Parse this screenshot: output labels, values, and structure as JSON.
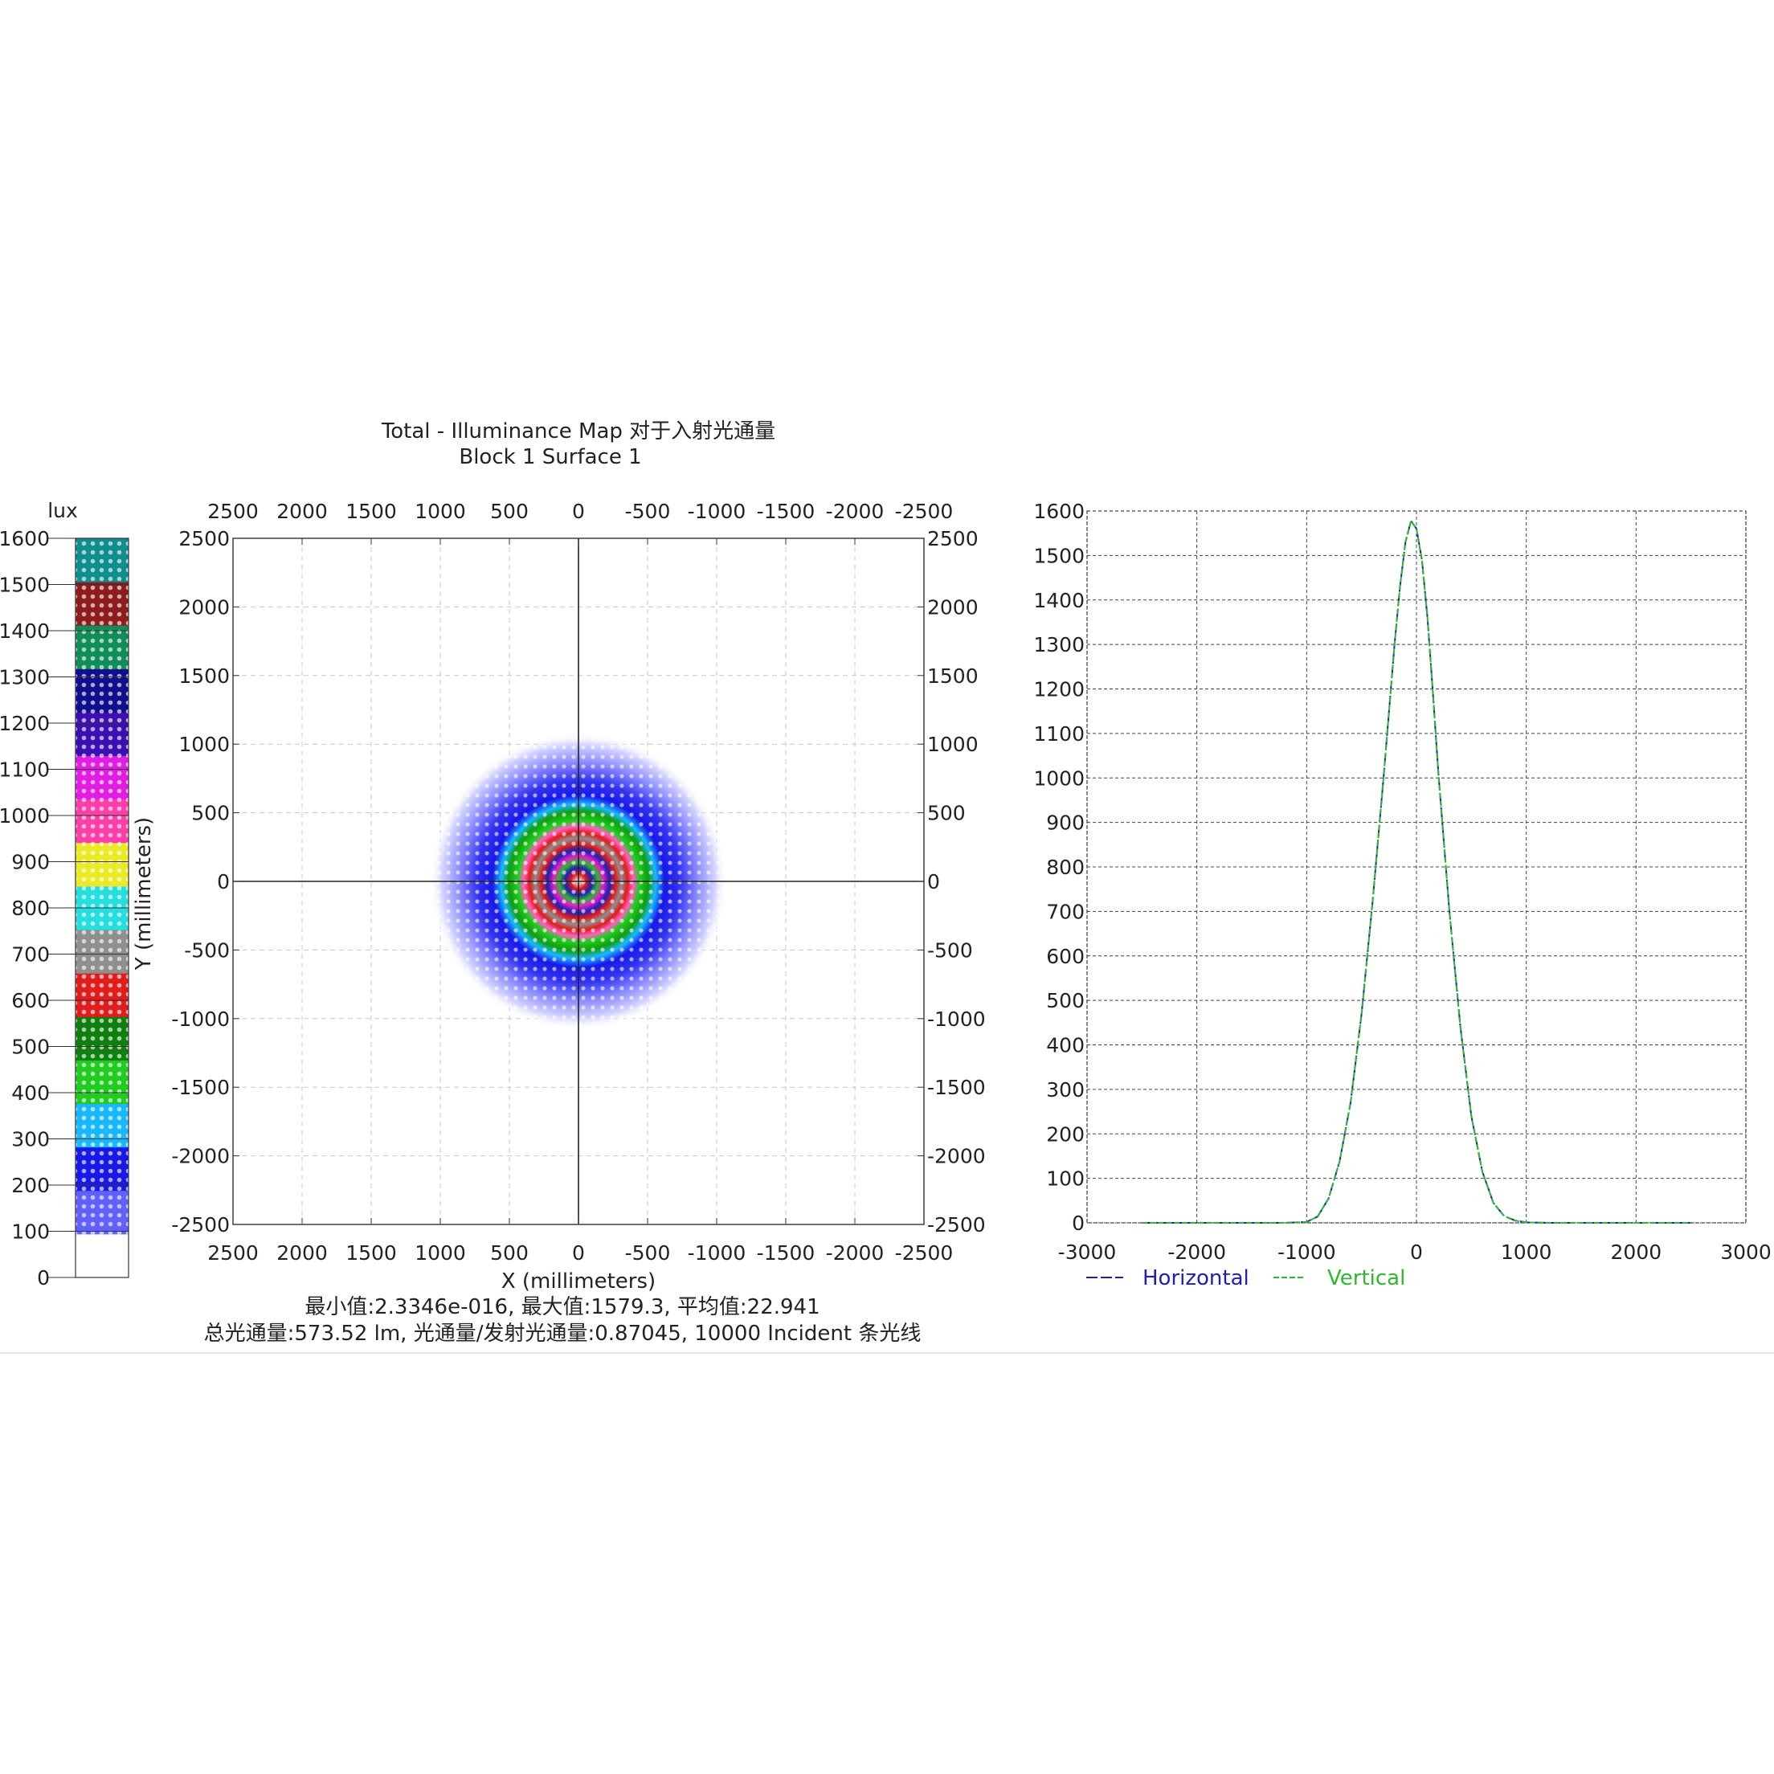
{
  "map_title": {
    "line1": "Total - Illuminance Map 对于入射光通量",
    "line2": "Block 1 Surface 1"
  },
  "colorbar": {
    "unit": "lux",
    "ticks": [
      "1600",
      "1500",
      "1400",
      "1300",
      "1200",
      "1100",
      "1000",
      "900",
      "800",
      "700",
      "600",
      "500",
      "400",
      "300",
      "200",
      "100",
      "0"
    ],
    "colors": [
      "#ffffff",
      "#6060ff",
      "#1818e8",
      "#18b8ff",
      "#1fcc1f",
      "#0f7f0f",
      "#e21c1c",
      "#8f8f8f",
      "#27dede",
      "#eaea27",
      "#ff3ea8",
      "#e21ce2",
      "#3c0fb3",
      "#0f0f8e",
      "#0f8e5a",
      "#8e1c1c",
      "#0f8e8e"
    ],
    "color_names": [
      "white",
      "light-blue",
      "blue",
      "sky-blue",
      "green",
      "dark-green",
      "red",
      "gray",
      "cyan",
      "yellow",
      "pink",
      "magenta",
      "purple",
      "navy",
      "sea-green",
      "dark-red",
      "teal"
    ]
  },
  "map_axes": {
    "top_ticks": [
      "2500",
      "2000",
      "1500",
      "1000",
      "500",
      "0",
      "-500",
      "-1000",
      "-1500",
      "-2000",
      "-2500"
    ],
    "bottom_ticks": [
      "2500",
      "2000",
      "1500",
      "1000",
      "500",
      "0",
      "-500",
      "-1000",
      "-1500",
      "-2000",
      "-2500"
    ],
    "left_ticks": [
      "2500",
      "2000",
      "1500",
      "1000",
      "500",
      "0",
      "-500",
      "-1000",
      "-1500",
      "-2000",
      "-2500"
    ],
    "right_ticks": [
      "2500",
      "2000",
      "1500",
      "1000",
      "500",
      "0",
      "-500",
      "-1000",
      "-1500",
      "-2000",
      "-2500"
    ],
    "xlabel": "X (millimeters)",
    "ylabel": "Y (millimeters)"
  },
  "stats": {
    "line1": "最小值:2.3346e-016, 最大值:1579.3, 平均值:22.941",
    "line2": "总光通量:573.52 lm, 光通量/发射光通量:0.87045, 10000 Incident 条光线"
  },
  "chart_data": [
    {
      "type": "heatmap",
      "title": "Total - Illuminance Map 对于入射光通量",
      "subtitle": "Block 1 Surface 1",
      "xlabel": "X (millimeters)",
      "ylabel": "Y (millimeters)",
      "xlim": [
        2500,
        -2500
      ],
      "ylim": [
        -2500,
        2500
      ],
      "zlim": [
        0,
        1600
      ],
      "unit": "lux",
      "peak": {
        "x": 0,
        "y": 0,
        "value": 1579.3
      },
      "min": 2.3346e-16,
      "mean": 22.941,
      "grid": true,
      "colorbar_placement": "left"
    },
    {
      "type": "line",
      "xlim": [
        -3000,
        3000
      ],
      "ylim": [
        0,
        1600
      ],
      "xticks": [
        "-3000",
        "-2000",
        "-1000",
        "0",
        "1000",
        "2000",
        "3000"
      ],
      "yticks": [
        "0",
        "100",
        "200",
        "300",
        "400",
        "500",
        "600",
        "700",
        "800",
        "900",
        "1000",
        "1100",
        "1200",
        "1300",
        "1400",
        "1500",
        "1600"
      ],
      "grid": true,
      "legend_placement": "bottom-left",
      "x": [
        -2500,
        -2000,
        -1500,
        -1200,
        -1000,
        -900,
        -800,
        -700,
        -600,
        -500,
        -400,
        -300,
        -200,
        -150,
        -100,
        -50,
        0,
        50,
        100,
        150,
        200,
        300,
        400,
        500,
        600,
        700,
        800,
        900,
        1000,
        1200,
        1500,
        2000,
        2500
      ],
      "series": [
        {
          "name": "Horizontal",
          "color": "#1f1fb4",
          "dash": "long",
          "values": [
            0,
            0,
            0,
            0,
            2,
            14,
            55,
            138,
            270,
            470,
            720,
            1000,
            1300,
            1430,
            1530,
            1578,
            1560,
            1490,
            1360,
            1190,
            1010,
            700,
            440,
            240,
            115,
            45,
            15,
            5,
            1,
            0,
            0,
            0,
            0
          ]
        },
        {
          "name": "Vertical",
          "color": "#2db82d",
          "dash": "short",
          "values": [
            0,
            0,
            0,
            0,
            2,
            14,
            55,
            138,
            270,
            470,
            720,
            1000,
            1300,
            1430,
            1530,
            1578,
            1560,
            1490,
            1360,
            1190,
            1010,
            700,
            440,
            240,
            115,
            45,
            15,
            5,
            1,
            0,
            0,
            0,
            0
          ]
        }
      ]
    }
  ]
}
